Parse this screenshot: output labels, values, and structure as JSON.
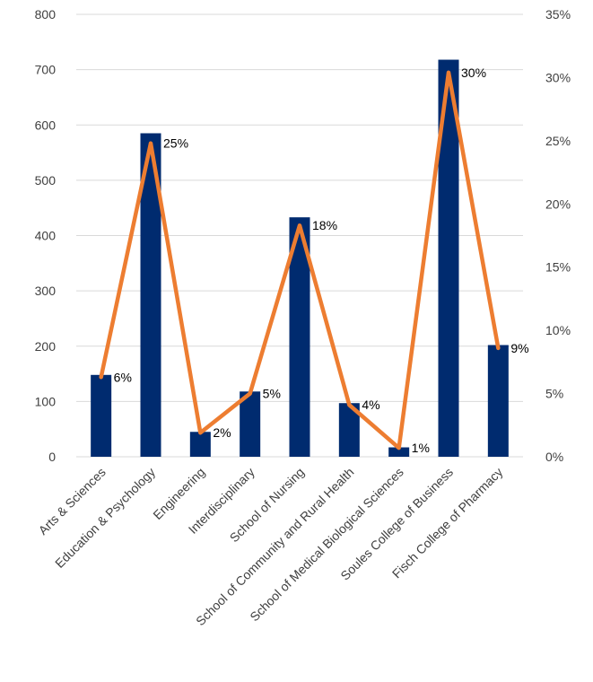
{
  "chart_data": {
    "type": "bar",
    "title": "",
    "xlabel": "",
    "ylabel": "",
    "categories": [
      "Arts & Sciences",
      "Education & Psychology",
      "Engineering",
      "Interdisciplinary",
      "School of Nursing",
      "School of Community and Rural Health",
      "School of Medical Biological Sciences",
      "Soules College of Business",
      "Fisch College of Pharmacy"
    ],
    "series": [
      {
        "type": "bar",
        "axis": "left",
        "values": [
          148,
          585,
          45,
          118,
          433,
          97,
          17,
          718,
          202
        ]
      },
      {
        "type": "line",
        "axis": "right",
        "values": [
          6.3,
          24.8,
          1.9,
          5.0,
          18.3,
          4.1,
          0.7,
          30.4,
          8.6
        ],
        "labels": [
          "6%",
          "25%",
          "2%",
          "5%",
          "18%",
          "4%",
          "1%",
          "30%",
          "9%"
        ]
      }
    ],
    "ylim": [
      0,
      800
    ],
    "yticks": [
      "0",
      "100",
      "200",
      "300",
      "400",
      "500",
      "600",
      "700",
      "800"
    ],
    "y2lim": [
      0,
      35
    ],
    "y2ticks": [
      "0%",
      "5%",
      "10%",
      "15%",
      "20%",
      "25%",
      "30%",
      "35%"
    ],
    "grid": true,
    "legend": "none",
    "colors": {
      "bar": "#002b6f",
      "line": "#ed7d31",
      "grid": "#d9d9d9"
    }
  }
}
